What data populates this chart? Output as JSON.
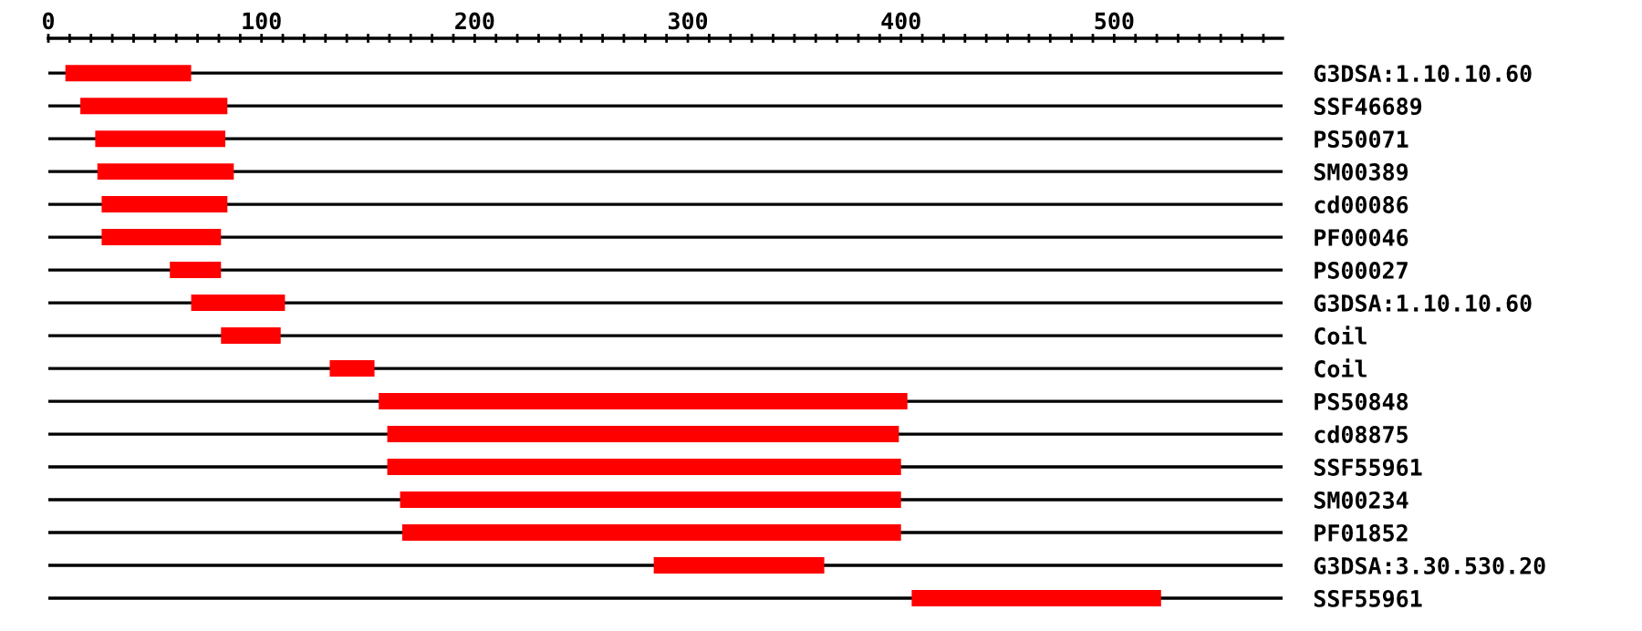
{
  "chart_data": {
    "type": "bar",
    "orientation": "horizontal",
    "grid": "y",
    "legend": false,
    "categories": [
      "G3DSA:1.10.10.60",
      "SSF46689",
      "PS50071",
      "SM00389",
      "cd00086",
      "PF00046",
      "PS00027",
      "G3DSA:1.10.10.60",
      "Coil",
      "Coil",
      "PS50848",
      "cd08875",
      "SSF55961",
      "SM00234",
      "PF01852",
      "G3DSA:3.30.530.20",
      "SSF55961"
    ],
    "base": [
      8,
      15,
      22,
      23,
      25,
      25,
      57,
      67,
      81,
      132,
      155,
      159,
      159,
      165,
      166,
      284,
      405
    ],
    "values": [
      59,
      69,
      61,
      64,
      59,
      56,
      24,
      44,
      28,
      21,
      248,
      240,
      241,
      235,
      234,
      80,
      117
    ],
    "color": "#ff0000",
    "xlim": [
      0,
      579
    ],
    "xticks": [
      0,
      {
        "value": 10,
        "label": null
      },
      {
        "value": 20,
        "label": null
      },
      {
        "value": 30,
        "label": null
      },
      {
        "value": 40,
        "label": null
      },
      {
        "value": 50,
        "label": null
      },
      {
        "value": 60,
        "label": null
      },
      {
        "value": 70,
        "label": null
      },
      {
        "value": 80,
        "label": null
      },
      {
        "value": 90,
        "label": null
      },
      100,
      {
        "value": 110,
        "label": null
      },
      {
        "value": 120,
        "label": null
      },
      {
        "value": 130,
        "label": null
      },
      {
        "value": 140,
        "label": null
      },
      {
        "value": 150,
        "label": null
      },
      {
        "value": 160,
        "label": null
      },
      {
        "value": 170,
        "label": null
      },
      {
        "value": 180,
        "label": null
      },
      {
        "value": 190,
        "label": null
      },
      200,
      {
        "value": 210,
        "label": null
      },
      {
        "value": 220,
        "label": null
      },
      {
        "value": 230,
        "label": null
      },
      {
        "value": 240,
        "label": null
      },
      {
        "value": 250,
        "label": null
      },
      {
        "value": 260,
        "label": null
      },
      {
        "value": 270,
        "label": null
      },
      {
        "value": 280,
        "label": null
      },
      {
        "value": 290,
        "label": null
      },
      300,
      {
        "value": 310,
        "label": null
      },
      {
        "value": 320,
        "label": null
      },
      {
        "value": 330,
        "label": null
      },
      {
        "value": 340,
        "label": null
      },
      {
        "value": 350,
        "label": null
      },
      {
        "value": 360,
        "label": null
      },
      {
        "value": 370,
        "label": null
      },
      {
        "value": 380,
        "label": null
      },
      {
        "value": 390,
        "label": null
      },
      400,
      {
        "value": 410,
        "label": null
      },
      {
        "value": 420,
        "label": null
      },
      {
        "value": 430,
        "label": null
      },
      {
        "value": 440,
        "label": null
      },
      {
        "value": 450,
        "label": null
      },
      {
        "value": 460,
        "label": null
      },
      {
        "value": 470,
        "label": null
      },
      {
        "value": 480,
        "label": null
      },
      {
        "value": 490,
        "label": null
      },
      500,
      {
        "value": 510,
        "label": null
      },
      {
        "value": 520,
        "label": null
      },
      {
        "value": 530,
        "label": null
      },
      {
        "value": 540,
        "label": null
      },
      {
        "value": 550,
        "label": null
      },
      {
        "value": 560,
        "label": null
      },
      {
        "value": 570,
        "label": null
      }
    ]
  }
}
